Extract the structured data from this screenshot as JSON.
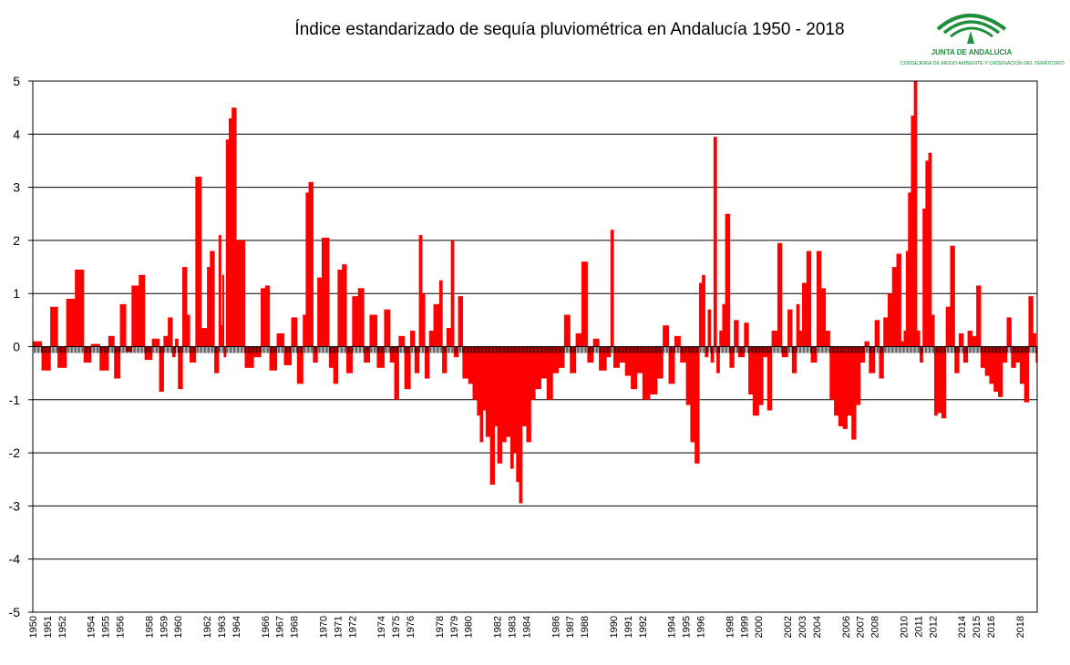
{
  "chart_data": {
    "type": "bar",
    "title": "Índice estandarizado de sequía pluviométrica en Andalucía 1950 - 2018",
    "xlabel": "",
    "ylabel": "",
    "ylim": [
      -5,
      5
    ],
    "yticks": [
      "5",
      "4",
      "3",
      "2",
      "1",
      "0",
      "-1",
      "-2",
      "-3",
      "-4",
      "-5"
    ],
    "xlim": [
      1950,
      2019.2
    ],
    "categories": [
      "1950",
      "1951",
      "1952",
      "1954",
      "1955",
      "1956",
      "1958",
      "1959",
      "1960",
      "1962",
      "1963",
      "1964",
      "1966",
      "1967",
      "1968",
      "1970",
      "1971",
      "1972",
      "1974",
      "1975",
      "1976",
      "1978",
      "1979",
      "1980",
      "1982",
      "1983",
      "1984",
      "1986",
      "1987",
      "1988",
      "1990",
      "1991",
      "1992",
      "1994",
      "1995",
      "1996",
      "1998",
      "1999",
      "2000",
      "2002",
      "2003",
      "2004",
      "2006",
      "2007",
      "2008",
      "2010",
      "2011",
      "2012",
      "2014",
      "2015",
      "2016",
      "2018"
    ],
    "x": [
      1950,
      1950.6,
      1951.2,
      1951.7,
      1952.3,
      1952.9,
      1953.5,
      1954.0,
      1954.6,
      1955.2,
      1955.6,
      1956.0,
      1956.4,
      1956.8,
      1957.3,
      1957.7,
      1958.2,
      1958.7,
      1959.0,
      1959.3,
      1959.6,
      1959.8,
      1960.0,
      1960.3,
      1960.6,
      1960.8,
      1961.2,
      1961.6,
      1962.0,
      1962.2,
      1962.5,
      1962.8,
      1962.95,
      1963.05,
      1963.15,
      1963.3,
      1963.5,
      1963.7,
      1964.0,
      1964.6,
      1965.2,
      1965.7,
      1966.0,
      1966.3,
      1966.8,
      1967.3,
      1967.8,
      1968.2,
      1968.6,
      1968.8,
      1969.0,
      1969.3,
      1969.6,
      1969.9,
      1970.4,
      1970.7,
      1971.0,
      1971.3,
      1971.6,
      1972.0,
      1972.4,
      1972.8,
      1973.2,
      1973.7,
      1974.2,
      1974.6,
      1974.9,
      1975.2,
      1975.6,
      1976.0,
      1976.3,
      1976.6,
      1976.8,
      1977.0,
      1977.3,
      1977.6,
      1978.0,
      1978.2,
      1978.5,
      1978.8,
      1979.0,
      1979.3,
      1979.6,
      1980.0,
      1980.3,
      1980.6,
      1980.8,
      1981.0,
      1981.2,
      1981.5,
      1981.8,
      1982.0,
      1982.3,
      1982.6,
      1982.9,
      1983.1,
      1983.3,
      1983.5,
      1983.7,
      1984.0,
      1984.3,
      1984.6,
      1985.0,
      1985.4,
      1985.8,
      1986.2,
      1986.6,
      1987.0,
      1987.4,
      1987.8,
      1988.2,
      1988.6,
      1989.0,
      1989.5,
      1989.8,
      1990.0,
      1990.4,
      1990.8,
      1991.2,
      1991.6,
      1992.0,
      1992.5,
      1993.0,
      1993.4,
      1993.8,
      1994.2,
      1994.6,
      1995.0,
      1995.3,
      1995.6,
      1995.9,
      1996.1,
      1996.3,
      1996.5,
      1996.7,
      1996.9,
      1997.1,
      1997.3,
      1997.5,
      1997.7,
      1998.0,
      1998.3,
      1998.6,
      1999.0,
      1999.3,
      1999.6,
      2000.0,
      2000.3,
      2000.6,
      2000.9,
      2001.3,
      2001.6,
      2002.0,
      2002.3,
      2002.6,
      2002.8,
      2003.0,
      2003.3,
      2003.6,
      2004.0,
      2004.3,
      2004.6,
      2004.9,
      2005.2,
      2005.5,
      2005.8,
      2006.1,
      2006.4,
      2006.7,
      2007.0,
      2007.3,
      2007.6,
      2008.0,
      2008.3,
      2008.6,
      2008.9,
      2009.2,
      2009.5,
      2009.8,
      2010.0,
      2010.15,
      2010.3,
      2010.5,
      2010.7,
      2010.9,
      2011.1,
      2011.3,
      2011.5,
      2011.7,
      2011.9,
      2012.1,
      2012.3,
      2012.6,
      2012.9,
      2013.2,
      2013.5,
      2013.8,
      2014.1,
      2014.4,
      2014.7,
      2015.0,
      2015.3,
      2015.6,
      2015.9,
      2016.2,
      2016.5,
      2016.8,
      2017.1,
      2017.4,
      2017.7,
      2018.0,
      2018.3,
      2018.6,
      2018.9,
      2019.1
    ],
    "values": [
      0.1,
      -0.45,
      0.75,
      -0.4,
      0.9,
      1.45,
      -0.3,
      0.05,
      -0.45,
      0.2,
      -0.6,
      0.8,
      -0.1,
      1.15,
      1.35,
      -0.25,
      0.15,
      -0.85,
      0.2,
      0.55,
      -0.2,
      0.15,
      -0.8,
      1.5,
      0.6,
      -0.3,
      3.2,
      0.35,
      1.5,
      1.8,
      -0.5,
      2.1,
      0.4,
      1.35,
      -0.2,
      3.9,
      4.3,
      4.5,
      2.0,
      -0.4,
      -0.2,
      1.1,
      1.15,
      -0.45,
      0.25,
      -0.35,
      0.55,
      -0.7,
      0.6,
      2.9,
      3.1,
      -0.3,
      1.3,
      2.05,
      -0.4,
      -0.7,
      1.45,
      1.55,
      -0.5,
      0.95,
      1.1,
      -0.3,
      0.6,
      -0.4,
      0.7,
      -0.3,
      -1.0,
      0.2,
      -0.8,
      0.3,
      -0.5,
      2.1,
      1.0,
      -0.6,
      0.3,
      0.8,
      1.25,
      -0.5,
      0.35,
      2.0,
      -0.2,
      0.95,
      -0.6,
      -0.7,
      -1.0,
      -1.3,
      -1.8,
      -1.2,
      -1.7,
      -2.6,
      -1.5,
      -2.2,
      -1.8,
      -1.7,
      -2.3,
      -2.0,
      -2.55,
      -2.95,
      -1.5,
      -1.8,
      -1.0,
      -0.8,
      -0.6,
      -1.0,
      -0.5,
      -0.4,
      0.6,
      -0.5,
      0.25,
      1.6,
      -0.3,
      0.15,
      -0.45,
      -0.2,
      2.2,
      -0.4,
      -0.3,
      -0.55,
      -0.8,
      -0.5,
      -1.0,
      -0.9,
      -0.6,
      0.4,
      -0.7,
      0.2,
      -0.3,
      -1.1,
      -1.8,
      -2.2,
      1.2,
      1.35,
      -0.2,
      0.7,
      -0.3,
      3.95,
      -0.5,
      0.3,
      0.8,
      2.5,
      -0.4,
      0.5,
      -0.2,
      0.45,
      -0.9,
      -1.3,
      -1.1,
      -0.2,
      -1.2,
      0.3,
      1.95,
      -0.2,
      0.7,
      -0.5,
      0.8,
      0.3,
      1.2,
      1.8,
      -0.3,
      1.8,
      1.1,
      0.3,
      -1.0,
      -1.3,
      -1.5,
      -1.55,
      -1.3,
      -1.75,
      -1.1,
      -0.3,
      0.1,
      -0.5,
      0.5,
      -0.6,
      0.55,
      1.0,
      1.5,
      1.75,
      0.1,
      0.3,
      1.8,
      2.9,
      4.35,
      5.0,
      0.3,
      -0.3,
      2.6,
      3.5,
      3.65,
      0.6,
      -1.3,
      -1.25,
      -1.35,
      0.75,
      1.9,
      -0.5,
      0.25,
      -0.3,
      0.3,
      0.2,
      1.15,
      -0.4,
      -0.55,
      -0.7,
      -0.85,
      -0.95,
      -0.3,
      0.55,
      -0.4,
      -0.3,
      -0.7,
      -1.05,
      0.95,
      0.25,
      -0.3
    ]
  },
  "logo": {
    "name": "JUNTA DE ANDALUCIA",
    "subtitle": "CONSEJERIA DE MEDIO AMBIENTE Y ORDENACION DEL TERRITORIO",
    "color": "#1c8f3a"
  },
  "colors": {
    "bar": "#ff0000",
    "grid": "#000000",
    "axis": "#000000",
    "background": "#ffffff"
  }
}
